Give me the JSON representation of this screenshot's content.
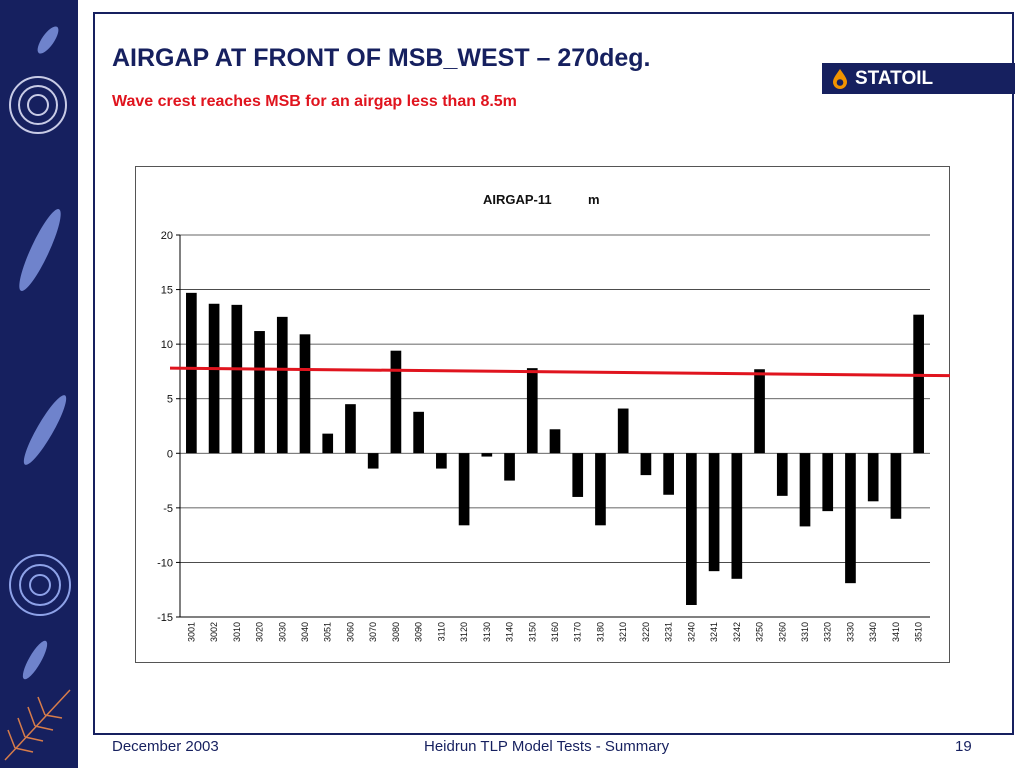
{
  "slide": {
    "title": "AIRGAP AT FRONT OF MSB_WEST – 270deg.",
    "subtitle": "Wave crest reaches MSB for an airgap less than 8.5m",
    "logo_text": "STATOIL",
    "footer_date": "December 2003",
    "footer_center": "Heidrun TLP Model Tests - Summary",
    "page_number": "19"
  },
  "colors": {
    "navy": "#16205f",
    "accent_red": "#e0141e",
    "bar": "#000000",
    "grid": "#333333"
  },
  "chart_data": {
    "type": "bar",
    "title": "AIRGAP-11",
    "unit": "m",
    "categories": [
      "3001",
      "3002",
      "3010",
      "3020",
      "3030",
      "3040",
      "3051",
      "3060",
      "3070",
      "3080",
      "3090",
      "3110",
      "3120",
      "3130",
      "3140",
      "3150",
      "3160",
      "3170",
      "3180",
      "3210",
      "3220",
      "3231",
      "3240",
      "3241",
      "3242",
      "3250",
      "3260",
      "3310",
      "3320",
      "3330",
      "3340",
      "3410",
      "3510"
    ],
    "values": [
      14.7,
      13.7,
      13.6,
      11.2,
      12.5,
      10.9,
      1.8,
      4.5,
      -1.4,
      9.4,
      3.8,
      -1.4,
      -6.6,
      -0.3,
      -2.5,
      7.8,
      2.2,
      -4.0,
      -6.6,
      4.1,
      -2.0,
      -3.8,
      -13.9,
      -10.8,
      -11.5,
      7.7,
      -3.9,
      -6.7,
      -5.3,
      -11.9,
      -4.4,
      -6.0,
      12.7
    ],
    "ylim": [
      -15,
      20
    ],
    "yticks": [
      -15,
      -10,
      -5,
      0,
      5,
      10,
      15,
      20
    ],
    "grid": true,
    "reference_line": {
      "y_start": 7.8,
      "y_end": 7.1,
      "color": "#e0141e"
    }
  }
}
